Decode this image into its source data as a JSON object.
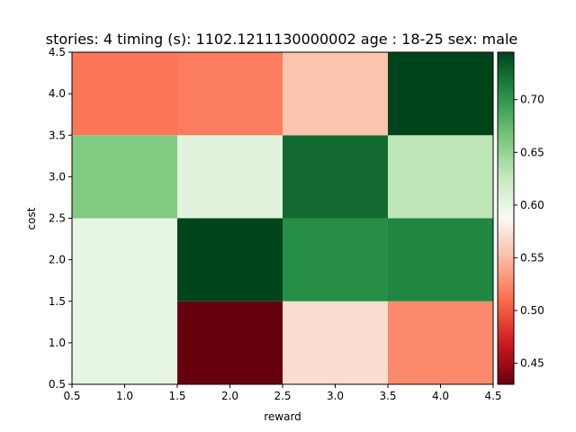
{
  "chart_data": {
    "type": "heatmap",
    "title": "stories: 4 timing (s): 1102.1211130000002 age : 18-25 sex: male",
    "xlabel": "reward",
    "ylabel": "cost",
    "x_ticks": [
      "0.5",
      "1.0",
      "1.5",
      "2.0",
      "2.5",
      "3.0",
      "3.5",
      "4.0",
      "4.5"
    ],
    "y_ticks": [
      "0.5",
      "1.0",
      "1.5",
      "2.0",
      "2.5",
      "3.0",
      "3.5",
      "4.0",
      "4.5"
    ],
    "xlim": [
      0.5,
      4.5
    ],
    "ylim": [
      0.5,
      4.5
    ],
    "x": [
      1,
      2,
      3,
      4
    ],
    "y": [
      1,
      2,
      3,
      4
    ],
    "values": [
      [
        0.6,
        0.43,
        0.57,
        0.525
      ],
      [
        0.6,
        0.745,
        0.705,
        0.71
      ],
      [
        0.66,
        0.605,
        0.725,
        0.63
      ],
      [
        0.515,
        0.518,
        0.555,
        0.745
      ]
    ],
    "colormap": "RdGn",
    "vmin": 0.43,
    "vmax": 0.745,
    "colorbar": {
      "ticks": [
        "0.45",
        "0.50",
        "0.55",
        "0.60",
        "0.65",
        "0.70"
      ],
      "tick_values": [
        0.45,
        0.5,
        0.55,
        0.6,
        0.65,
        0.7
      ]
    },
    "grid": false
  }
}
